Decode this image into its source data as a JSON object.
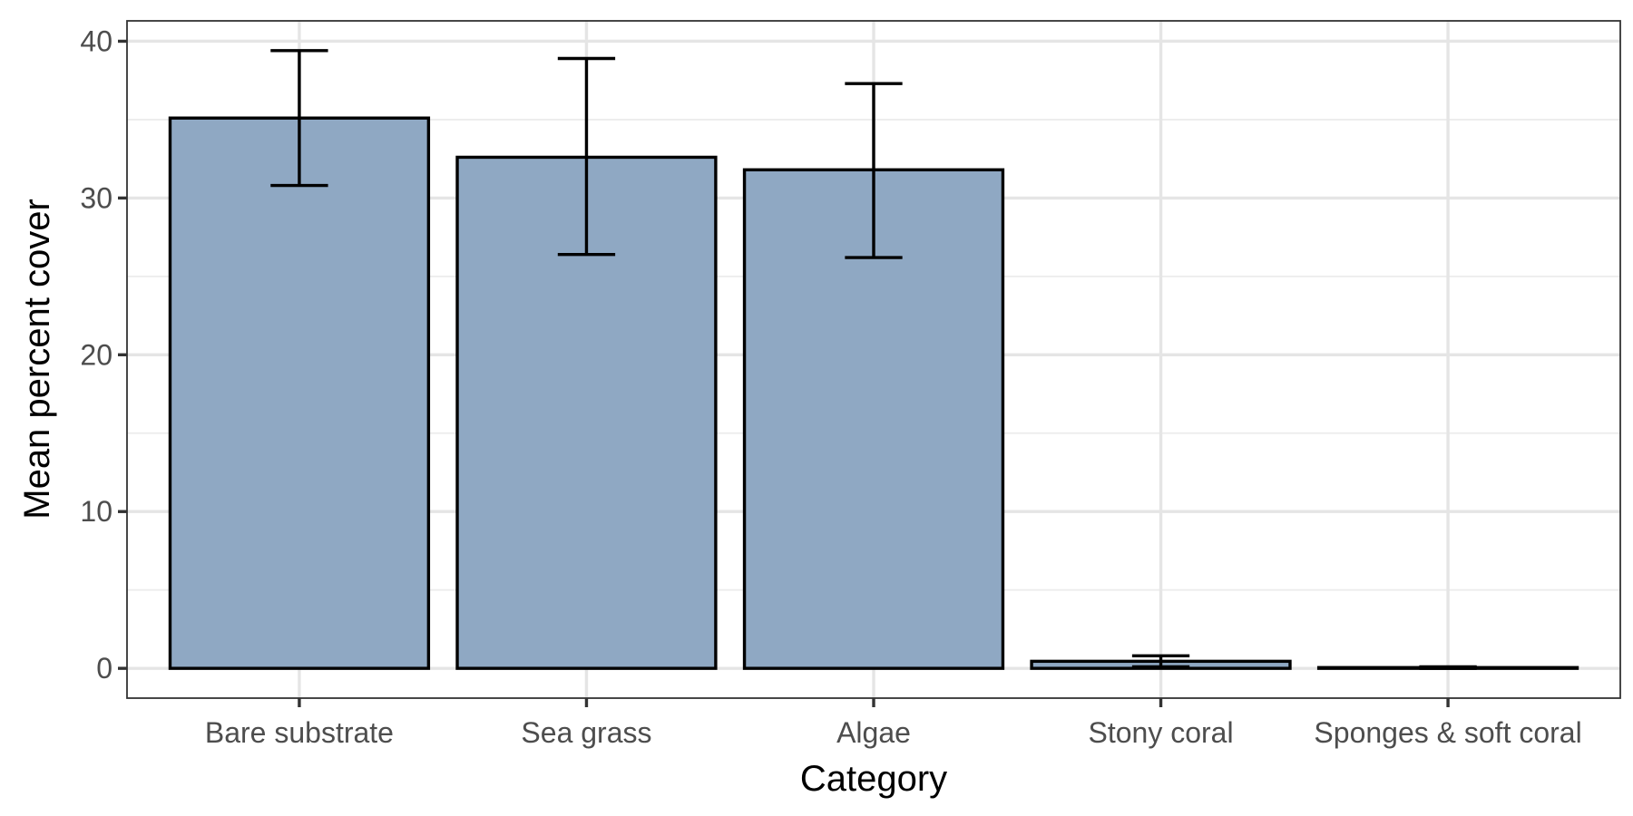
{
  "chart_data": {
    "type": "bar",
    "categories": [
      "Bare substrate",
      "Sea grass",
      "Algae",
      "Stony coral",
      "Sponges & soft coral"
    ],
    "values": [
      35.1,
      32.6,
      31.8,
      0.45,
      0.05
    ],
    "error_low": [
      30.8,
      26.4,
      26.2,
      0.1,
      0.0
    ],
    "error_high": [
      39.4,
      38.9,
      37.3,
      0.8,
      0.1
    ],
    "title": "",
    "xlabel": "Category",
    "ylabel": "Mean percent cover",
    "ylim": [
      -1.9,
      41.3
    ],
    "yticks": [
      0,
      10,
      20,
      30,
      40
    ],
    "grid": true,
    "colors": {
      "bar_fill": "#8fa8c3",
      "bar_outline": "#000000",
      "grid": "#e5e5e5",
      "text": "#4d4d4d"
    }
  }
}
